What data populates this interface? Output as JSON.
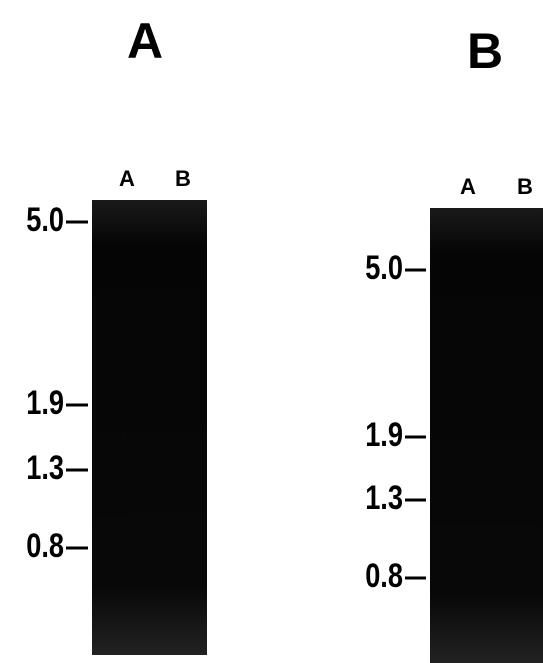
{
  "panels": [
    {
      "label": "A",
      "lanes": [
        "A",
        "B"
      ],
      "markers": [
        "5.0",
        "1.9",
        "1.3",
        "0.8"
      ]
    },
    {
      "label": "B",
      "lanes": [
        "A",
        "B"
      ],
      "markers": [
        "5.0",
        "1.9",
        "1.3",
        "0.8"
      ]
    }
  ]
}
